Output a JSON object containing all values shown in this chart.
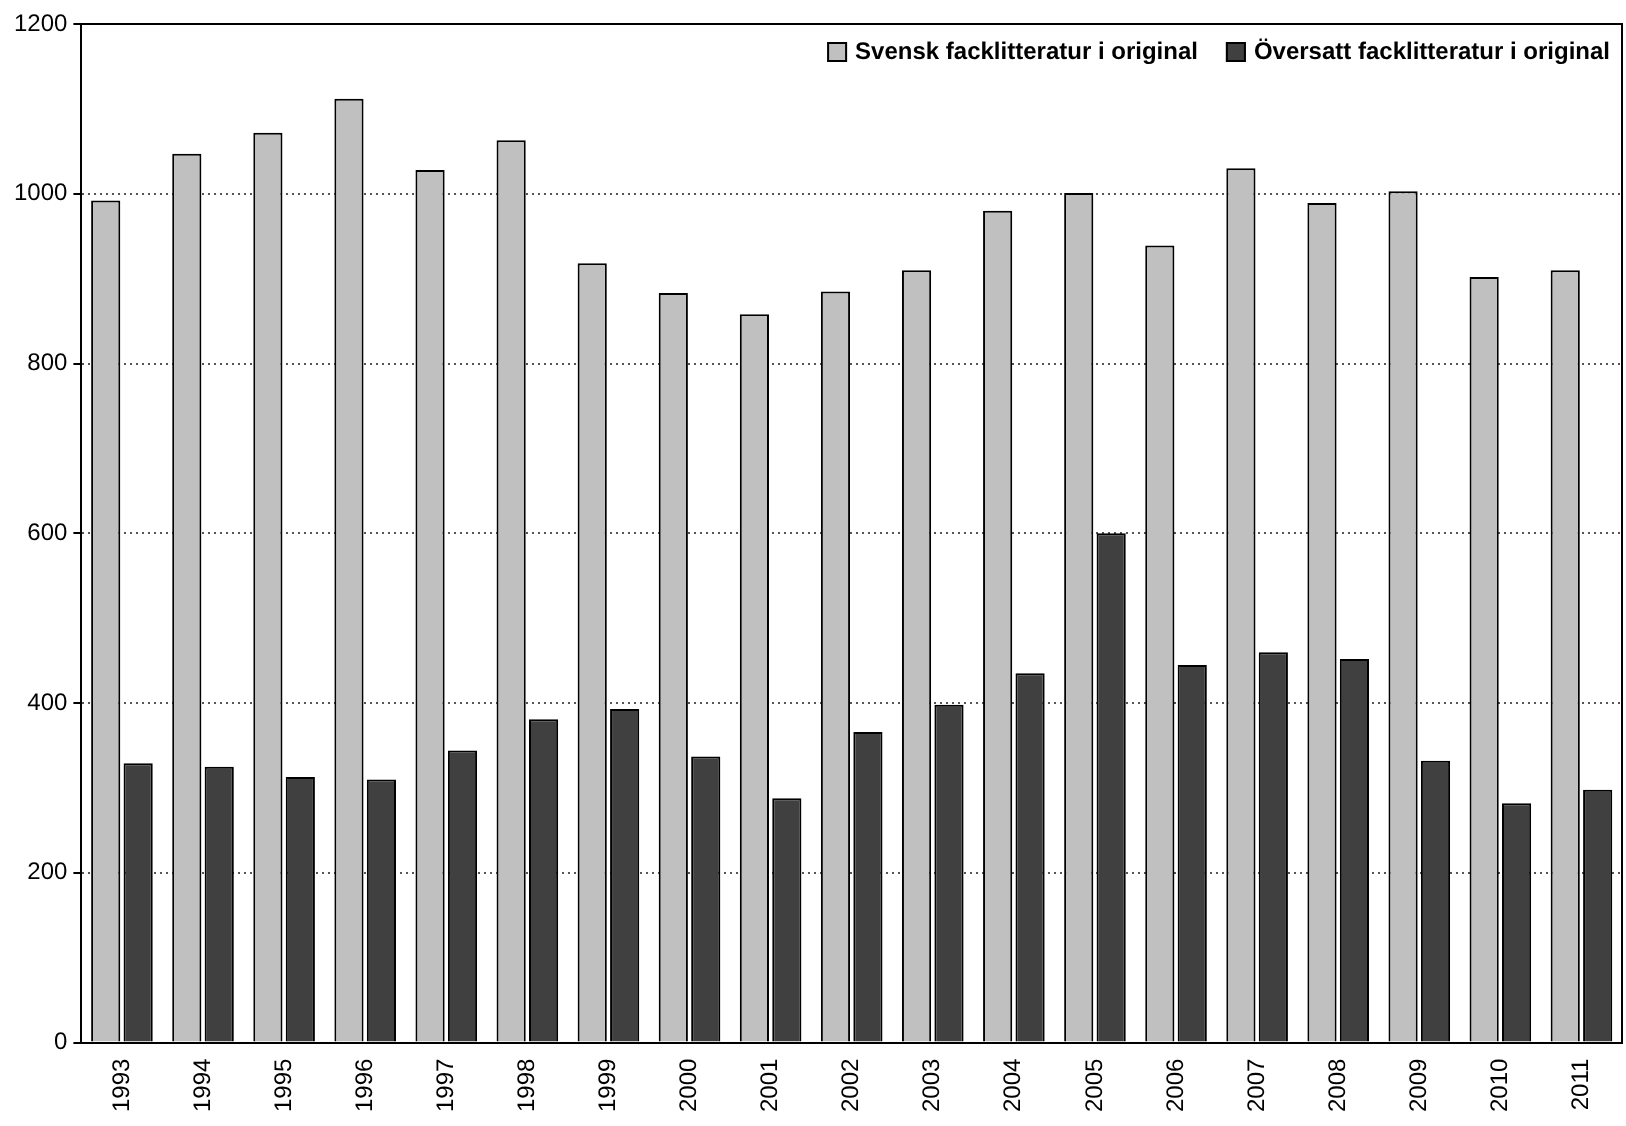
{
  "chart_data": {
    "type": "bar",
    "categories": [
      "1993",
      "1994",
      "1995",
      "1996",
      "1997",
      "1998",
      "1999",
      "2000",
      "2001",
      "2002",
      "2003",
      "2004",
      "2005",
      "2006",
      "2007",
      "2008",
      "2009",
      "2010",
      "2011"
    ],
    "series": [
      {
        "name": "Svensk facklitteratur i original",
        "color": "#c0c0c0",
        "values": [
          992,
          1047,
          1072,
          1112,
          1028,
          1063,
          918,
          883,
          858,
          885,
          910,
          980,
          1001,
          939,
          1030,
          989,
          1003,
          902,
          910
        ]
      },
      {
        "name": "Översatt facklitteratur i original",
        "color": "#404040",
        "values": [
          329,
          325,
          313,
          310,
          344,
          381,
          393,
          337,
          288,
          366,
          398,
          435,
          600,
          445,
          460,
          452,
          332,
          282,
          298
        ]
      }
    ],
    "ylim": [
      0,
      1200
    ],
    "yticks": [
      0,
      200,
      400,
      600,
      800,
      1000,
      1200
    ],
    "grid": "y",
    "legend": "top right"
  }
}
